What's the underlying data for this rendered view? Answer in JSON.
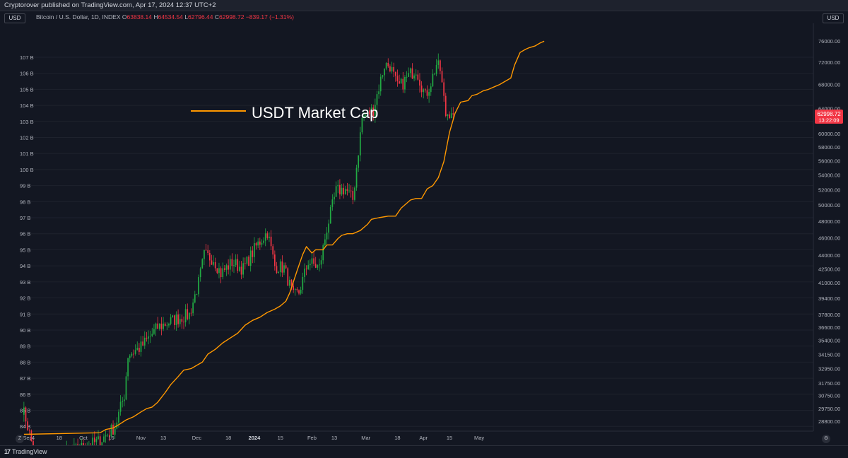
{
  "header": {
    "published": "Cryptorover published on TradingView.com, Apr 17, 2024 12:37 UTC+2",
    "symbol": "Bitcoin / U.S. Dollar, 1D, INDEX",
    "o_label": "O",
    "o_value": "63838.14",
    "h_label": "H",
    "h_value": "64534.54",
    "l_label": "L",
    "l_value": "62796.44",
    "c_label": "C",
    "c_value": "62998.72",
    "change": "−839.17 (−1.31%)",
    "left_currency": "USD",
    "right_currency": "USD"
  },
  "footer": {
    "logo": "TradingView",
    "logo_mark": "17",
    "left_corner": "Z",
    "right_corner": "⚙"
  },
  "colors": {
    "background": "#131722",
    "up": "#26a69a",
    "up_candle": "#22ab44",
    "down": "#f23645",
    "usdt_line": "#ff9800",
    "grid": "#1e222d"
  },
  "chart_data": {
    "type": "line",
    "annotation": "USDT Market Cap",
    "left_axis": {
      "ticks": [
        "84 B",
        "85 B",
        "86 B",
        "87 B",
        "88 B",
        "89 B",
        "90 B",
        "91 B",
        "92 B",
        "93 B",
        "94 B",
        "95 B",
        "96 B",
        "97 B",
        "98 B",
        "99 B",
        "100 B",
        "101 B",
        "102 B",
        "103 B",
        "104 B",
        "105 B",
        "106 B",
        "107 B"
      ],
      "range": [
        83.7,
        108.1
      ]
    },
    "right_axis": {
      "ticks": [
        "28800.00",
        "29750.00",
        "30750.00",
        "31750.00",
        "32950.00",
        "34150.00",
        "35400.00",
        "36600.00",
        "37800.00",
        "39400.00",
        "41000.00",
        "42500.00",
        "44000.00",
        "46000.00",
        "48000.00",
        "50000.00",
        "52000.00",
        "54000.00",
        "56000.00",
        "58000.00",
        "60000.00",
        "64000.00",
        "68000.00",
        "72000.00",
        "76000.00"
      ],
      "scale": "log",
      "last_price": "62998.72",
      "countdown": "13:22:09"
    },
    "x_axis": {
      "ticks": [
        "4",
        "Sep",
        "18",
        "Oct",
        "16",
        "Nov",
        "13",
        "Dec",
        "18",
        "2024",
        "15",
        "Feb",
        "13",
        "Mar",
        "18",
        "Apr",
        "15",
        "May"
      ]
    },
    "usdt_series": {
      "name": "USDT Market Cap",
      "points": [
        [
          "Aug 30",
          83.5
        ],
        [
          "Oct 10",
          83.6
        ],
        [
          "Oct 13",
          83.8
        ],
        [
          "Oct 17",
          83.9
        ],
        [
          "Oct 20",
          84.1
        ],
        [
          "Oct 24",
          84.4
        ],
        [
          "Oct 28",
          84.6
        ],
        [
          "Nov 1",
          84.9
        ],
        [
          "Nov 4",
          85.1
        ],
        [
          "Nov 7",
          85.2
        ],
        [
          "Nov 10",
          85.5
        ],
        [
          "Nov 14",
          86.1
        ],
        [
          "Nov 17",
          86.6
        ],
        [
          "Nov 21",
          87.1
        ],
        [
          "Nov 24",
          87.5
        ],
        [
          "Nov 28",
          87.6
        ],
        [
          "Dec 1",
          87.8
        ],
        [
          "Dec 4",
          88.0
        ],
        [
          "Dec 7",
          88.5
        ],
        [
          "Dec 11",
          88.8
        ],
        [
          "Dec 15",
          89.2
        ],
        [
          "Dec 19",
          89.5
        ],
        [
          "Dec 23",
          89.8
        ],
        [
          "Dec 27",
          90.3
        ],
        [
          "Dec 31",
          90.6
        ],
        [
          "Jan 4",
          90.8
        ],
        [
          "Jan 8",
          91.1
        ],
        [
          "Jan 12",
          91.3
        ],
        [
          "Jan 15",
          91.5
        ],
        [
          "Jan 18",
          91.8
        ],
        [
          "Jan 20",
          92.3
        ],
        [
          "Jan 24",
          93.7
        ],
        [
          "Jan 27",
          94.7
        ],
        [
          "Jan 29",
          95.2
        ],
        [
          "Feb 1",
          94.8
        ],
        [
          "Feb 3",
          95.0
        ],
        [
          "Feb 7",
          95.0
        ],
        [
          "Feb 9",
          95.3
        ],
        [
          "Feb 12",
          95.3
        ],
        [
          "Feb 15",
          95.7
        ],
        [
          "Feb 17",
          95.9
        ],
        [
          "Feb 20",
          96.0
        ],
        [
          "Feb 23",
          96.0
        ],
        [
          "Feb 27",
          96.2
        ],
        [
          "Mar 2",
          96.6
        ],
        [
          "Mar 4",
          96.9
        ],
        [
          "Mar 8",
          97.0
        ],
        [
          "Mar 13",
          97.1
        ],
        [
          "Mar 17",
          97.1
        ],
        [
          "Mar 20",
          97.6
        ],
        [
          "Mar 22",
          97.8
        ],
        [
          "Mar 25",
          98.1
        ],
        [
          "Mar 28",
          98.2
        ],
        [
          "Mar 31",
          98.2
        ],
        [
          "Apr 3",
          98.8
        ],
        [
          "Apr 6",
          99.0
        ],
        [
          "Apr 9",
          99.5
        ],
        [
          "Apr 12",
          100.5
        ],
        [
          "Apr 15",
          102.3
        ],
        [
          "Apr 18",
          103.5
        ],
        [
          "Apr 21",
          104.2
        ],
        [
          "Apr 25",
          104.3
        ],
        [
          "Apr 27",
          104.6
        ],
        [
          "Apr 30",
          104.7
        ],
        [
          "May 3",
          104.9
        ],
        [
          "May 6",
          105.0
        ],
        [
          "May 10",
          105.2
        ],
        [
          "May 12",
          105.3
        ],
        [
          "May 15",
          105.5
        ],
        [
          "May 18",
          105.7
        ],
        [
          "May 20",
          106.5
        ],
        [
          "May 23",
          107.3
        ],
        [
          "May 26",
          107.5
        ],
        [
          "May 28",
          107.6
        ],
        [
          "May 31",
          107.7
        ],
        [
          "Jun 3",
          107.9
        ],
        [
          "Jun 5",
          108.0
        ]
      ]
    },
    "btc_candles_anchors": [
      [
        "Aug 29",
        29800
      ],
      [
        "Aug 31",
        29000
      ],
      [
        "Sep 6",
        25800
      ],
      [
        "Oct 10",
        27400
      ],
      [
        "Oct 18",
        28400
      ],
      [
        "Oct 23",
        30800
      ],
      [
        "Oct 25",
        34100
      ],
      [
        "Nov 1",
        34800
      ],
      [
        "Nov 10",
        36600
      ],
      [
        "Nov 20",
        37400
      ],
      [
        "Nov 27",
        37800
      ],
      [
        "Dec 2",
        41000
      ],
      [
        "Dec 5",
        44000
      ],
      [
        "Dec 10",
        43600
      ],
      [
        "Dec 14",
        42000
      ],
      [
        "Dec 20",
        43200
      ],
      [
        "Dec 26",
        42500
      ],
      [
        "Jan 2",
        45000
      ],
      [
        "Jan 8",
        46700
      ],
      [
        "Jan 12",
        42800
      ],
      [
        "Jan 17",
        42600
      ],
      [
        "Jan 22",
        39600
      ],
      [
        "Jan 25",
        40000
      ],
      [
        "Jan 30",
        43300
      ],
      [
        "Feb 5",
        42600
      ],
      [
        "Feb 9",
        47100
      ],
      [
        "Feb 14",
        51800
      ],
      [
        "Feb 19",
        52100
      ],
      [
        "Feb 23",
        50700
      ],
      [
        "Feb 28",
        62400
      ],
      [
        "Mar 5",
        63800
      ],
      [
        "Mar 11",
        71500
      ],
      [
        "Mar 14",
        71400
      ],
      [
        "Mar 18",
        67600
      ],
      [
        "Mar 20",
        67900
      ],
      [
        "Mar 25",
        69900
      ],
      [
        "Mar 28",
        70800
      ],
      [
        "Apr 2",
        66000
      ],
      [
        "Apr 5",
        68400
      ],
      [
        "Apr 8",
        71600
      ],
      [
        "Apr 10",
        70600
      ],
      [
        "Apr 13",
        63000
      ],
      [
        "Apr 15",
        63400
      ],
      [
        "Apr 16",
        63800
      ],
      [
        "Apr 17",
        62999
      ]
    ]
  }
}
